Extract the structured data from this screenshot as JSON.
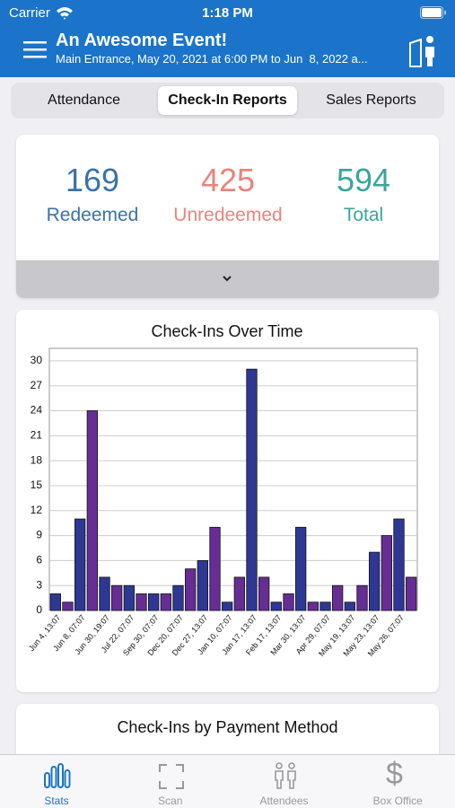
{
  "status_bar": {
    "carrier": "Carrier",
    "time": "1:18 PM"
  },
  "header": {
    "title": "An Awesome Event!",
    "subtitle": "Main Entrance, May 20, 2021 at 6:00 PM to Jun  8, 2022 a..."
  },
  "tabs": [
    "Attendance",
    "Check-In Reports",
    "Sales Reports"
  ],
  "selected_tab": 1,
  "summary": [
    {
      "value": 169,
      "label": "Redeemed",
      "color": "#3a72a8"
    },
    {
      "value": 425,
      "label": "Unredeemed",
      "color": "#e8857c"
    },
    {
      "value": 594,
      "label": "Total",
      "color": "#3ba59b"
    }
  ],
  "chart_data": {
    "type": "bar",
    "title": "Check-Ins Over Time",
    "categories": [
      "Jun 4, 13:07",
      null,
      "Jun 8, 07:07",
      null,
      "Jun 30, 19:07",
      null,
      "Jul 22, 07:07",
      null,
      "Sep 30, 07:07",
      null,
      "Dec 20, 07:07",
      null,
      "Dec 27, 13:07",
      null,
      "Jan 10, 07:07",
      null,
      "Jan 17, 13:07",
      null,
      "Feb 17, 13:07",
      null,
      "Mar 30, 13:07",
      null,
      "Apr 29, 07:07",
      null,
      "May 19, 13:07",
      null,
      "May 23, 13:07",
      null,
      "May 26, 07:07",
      null
    ],
    "values": [
      2,
      1,
      11,
      24,
      4,
      3,
      3,
      2,
      2,
      2,
      3,
      5,
      6,
      10,
      1,
      4,
      29,
      4,
      1,
      2,
      10,
      1,
      1,
      3,
      1,
      3,
      7,
      9,
      11,
      4
    ],
    "colors": [
      "#2e3894",
      "#662e94"
    ],
    "ylim": [
      0,
      31.5
    ],
    "yticks": [
      0,
      3,
      6,
      9,
      12,
      15,
      18,
      21,
      24,
      27,
      30
    ],
    "grid": true
  },
  "section_title": "Check-Ins by Payment Method",
  "tab_bar": [
    "Stats",
    "Scan",
    "Attendees",
    "Box Office"
  ],
  "selected_tab_bar": 0
}
